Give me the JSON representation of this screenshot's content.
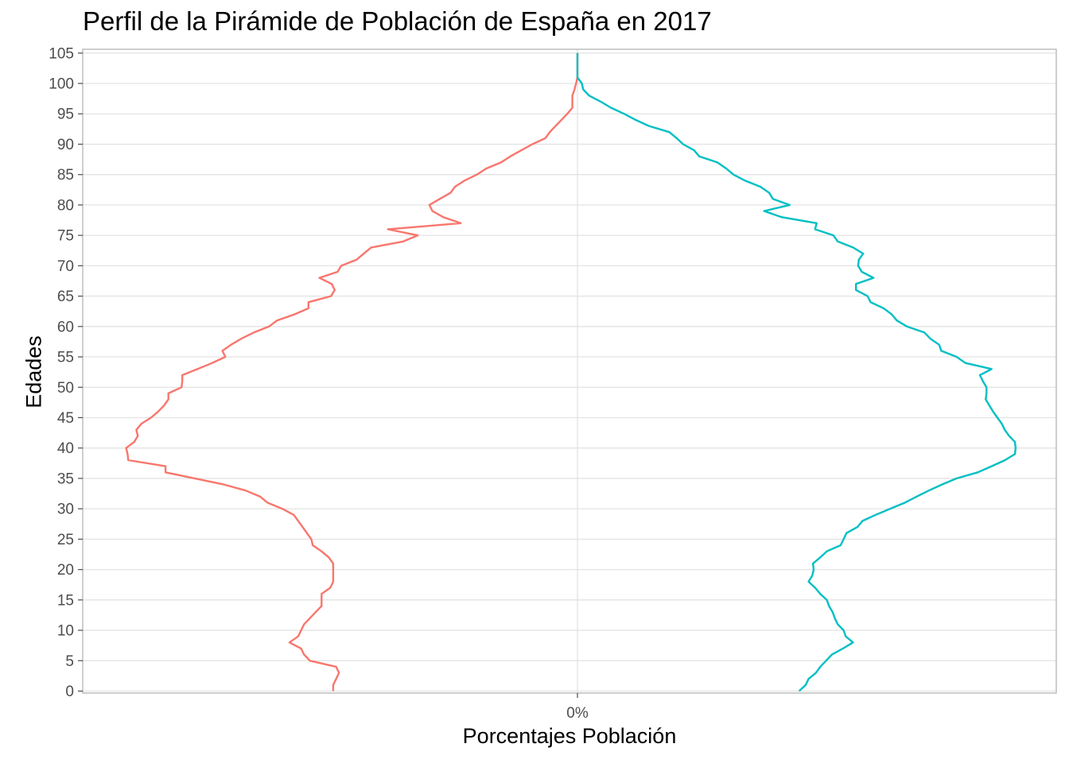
{
  "chart_data": {
    "type": "line",
    "title": "Perfil de la Pirámide de Población de España en 2017",
    "xlabel": "Porcentajes Población",
    "ylabel": "Edades",
    "x_tick_labels": [
      "0%"
    ],
    "x_ticks": [
      0
    ],
    "y_ticks": [
      0,
      5,
      10,
      15,
      20,
      25,
      30,
      35,
      40,
      45,
      50,
      55,
      60,
      65,
      70,
      75,
      80,
      85,
      90,
      95,
      100,
      105
    ],
    "xlim": [
      -0.95,
      0.95
    ],
    "ylim": [
      0,
      105
    ],
    "grid": true,
    "legend": "none",
    "series": [
      {
        "color": "#F8766D",
        "points": [
          [
            0,
            -0.4653
          ],
          [
            1,
            -0.4653
          ],
          [
            2,
            -0.4597
          ],
          [
            3,
            -0.4542
          ],
          [
            4,
            -0.4597
          ],
          [
            5,
            -0.5097
          ],
          [
            6,
            -0.5208
          ],
          [
            7,
            -0.5264
          ],
          [
            8,
            -0.5486
          ],
          [
            9,
            -0.5319
          ],
          [
            10,
            -0.5264
          ],
          [
            11,
            -0.5208
          ],
          [
            12,
            -0.5097
          ],
          [
            13,
            -0.4986
          ],
          [
            14,
            -0.4875
          ],
          [
            15,
            -0.4875
          ],
          [
            16,
            -0.4875
          ],
          [
            17,
            -0.4708
          ],
          [
            18,
            -0.4653
          ],
          [
            19,
            -0.4653
          ],
          [
            20,
            -0.4653
          ],
          [
            21,
            -0.4653
          ],
          [
            22,
            -0.4736
          ],
          [
            23,
            -0.4875
          ],
          [
            24,
            -0.5042
          ],
          [
            25,
            -0.5069
          ],
          [
            26,
            -0.5153
          ],
          [
            27,
            -0.5236
          ],
          [
            28,
            -0.5319
          ],
          [
            29,
            -0.5403
          ],
          [
            30,
            -0.5625
          ],
          [
            31,
            -0.5903
          ],
          [
            32,
            -0.6042
          ],
          [
            33,
            -0.6319
          ],
          [
            34,
            -0.6736
          ],
          [
            35,
            -0.7292
          ],
          [
            36,
            -0.7847
          ],
          [
            37,
            -0.7847
          ],
          [
            38,
            -0.8556
          ],
          [
            39,
            -0.8569
          ],
          [
            40,
            -0.8597
          ],
          [
            41,
            -0.8444
          ],
          [
            42,
            -0.8375
          ],
          [
            43,
            -0.8403
          ],
          [
            44,
            -0.8306
          ],
          [
            45,
            -0.8125
          ],
          [
            46,
            -0.7986
          ],
          [
            47,
            -0.7875
          ],
          [
            48,
            -0.7792
          ],
          [
            49,
            -0.7792
          ],
          [
            50,
            -0.7542
          ],
          [
            51,
            -0.7528
          ],
          [
            52,
            -0.7528
          ],
          [
            53,
            -0.7236
          ],
          [
            54,
            -0.6958
          ],
          [
            55,
            -0.6708
          ],
          [
            56,
            -0.6764
          ],
          [
            57,
            -0.6597
          ],
          [
            58,
            -0.6403
          ],
          [
            59,
            -0.6167
          ],
          [
            60,
            -0.5875
          ],
          [
            61,
            -0.5722
          ],
          [
            62,
            -0.5389
          ],
          [
            63,
            -0.5125
          ],
          [
            64,
            -0.5125
          ],
          [
            65,
            -0.4694
          ],
          [
            66,
            -0.4625
          ],
          [
            67,
            -0.4681
          ],
          [
            68,
            -0.4917
          ],
          [
            69,
            -0.4569
          ],
          [
            70,
            -0.45
          ],
          [
            71,
            -0.4208
          ],
          [
            72,
            -0.4069
          ],
          [
            73,
            -0.3931
          ],
          [
            74,
            -0.3319
          ],
          [
            75,
            -0.3042
          ],
          [
            76,
            -0.3611
          ],
          [
            77,
            -0.2222
          ],
          [
            78,
            -0.2556
          ],
          [
            79,
            -0.2764
          ],
          [
            80,
            -0.2819
          ],
          [
            81,
            -0.2625
          ],
          [
            82,
            -0.2417
          ],
          [
            83,
            -0.2333
          ],
          [
            84,
            -0.2153
          ],
          [
            85,
            -0.1917
          ],
          [
            86,
            -0.1736
          ],
          [
            87,
            -0.1458
          ],
          [
            88,
            -0.1278
          ],
          [
            89,
            -0.1069
          ],
          [
            90,
            -0.0861
          ],
          [
            91,
            -0.0611
          ],
          [
            92,
            -0.0528
          ],
          [
            93,
            -0.0417
          ],
          [
            94,
            -0.0306
          ],
          [
            95,
            -0.0194
          ],
          [
            96,
            -0.0097
          ],
          [
            97,
            -0.0097
          ],
          [
            98,
            -0.0097
          ],
          [
            99,
            -0.0056
          ],
          [
            100,
            -0.0028
          ],
          [
            101,
            0.0
          ],
          [
            102,
            0.0
          ],
          [
            103,
            0.0
          ],
          [
            104,
            0.0
          ],
          [
            105,
            0.0
          ]
        ]
      },
      {
        "color": "#00BFC4",
        "points": [
          [
            0,
            0.4222
          ],
          [
            1,
            0.4347
          ],
          [
            2,
            0.4403
          ],
          [
            3,
            0.4542
          ],
          [
            4,
            0.4625
          ],
          [
            5,
            0.4736
          ],
          [
            6,
            0.4847
          ],
          [
            7,
            0.5056
          ],
          [
            8,
            0.525
          ],
          [
            9,
            0.5111
          ],
          [
            10,
            0.5069
          ],
          [
            11,
            0.4958
          ],
          [
            12,
            0.4903
          ],
          [
            13,
            0.4861
          ],
          [
            14,
            0.4792
          ],
          [
            15,
            0.475
          ],
          [
            16,
            0.4625
          ],
          [
            17,
            0.4528
          ],
          [
            18,
            0.4403
          ],
          [
            19,
            0.4472
          ],
          [
            20,
            0.45
          ],
          [
            21,
            0.4486
          ],
          [
            22,
            0.4625
          ],
          [
            23,
            0.475
          ],
          [
            24,
            0.5014
          ],
          [
            25,
            0.5069
          ],
          [
            26,
            0.5125
          ],
          [
            27,
            0.5333
          ],
          [
            28,
            0.5431
          ],
          [
            29,
            0.5681
          ],
          [
            30,
            0.5958
          ],
          [
            31,
            0.6236
          ],
          [
            32,
            0.6458
          ],
          [
            33,
            0.6694
          ],
          [
            34,
            0.6944
          ],
          [
            35,
            0.7222
          ],
          [
            36,
            0.7625
          ],
          [
            37,
            0.7889
          ],
          [
            38,
            0.8144
          ],
          [
            39,
            0.8333
          ],
          [
            40,
            0.8347
          ],
          [
            41,
            0.8333
          ],
          [
            42,
            0.8222
          ],
          [
            43,
            0.8139
          ],
          [
            44,
            0.8083
          ],
          [
            45,
            0.8
          ],
          [
            46,
            0.7917
          ],
          [
            47,
            0.7847
          ],
          [
            48,
            0.7778
          ],
          [
            49,
            0.7792
          ],
          [
            50,
            0.7792
          ],
          [
            51,
            0.7722
          ],
          [
            52,
            0.7667
          ],
          [
            53,
            0.7889
          ],
          [
            54,
            0.7389
          ],
          [
            55,
            0.7222
          ],
          [
            56,
            0.6931
          ],
          [
            57,
            0.6889
          ],
          [
            58,
            0.6722
          ],
          [
            59,
            0.6611
          ],
          [
            60,
            0.6278
          ],
          [
            61,
            0.6083
          ],
          [
            62,
            0.5986
          ],
          [
            63,
            0.5833
          ],
          [
            64,
            0.5583
          ],
          [
            65,
            0.5528
          ],
          [
            66,
            0.5306
          ],
          [
            67,
            0.5306
          ],
          [
            68,
            0.5639
          ],
          [
            69,
            0.5417
          ],
          [
            70,
            0.5347
          ],
          [
            71,
            0.5361
          ],
          [
            72,
            0.5444
          ],
          [
            73,
            0.525
          ],
          [
            74,
            0.4958
          ],
          [
            75,
            0.4875
          ],
          [
            76,
            0.4528
          ],
          [
            77,
            0.4556
          ],
          [
            78,
            0.3889
          ],
          [
            79,
            0.3556
          ],
          [
            80,
            0.4042
          ],
          [
            81,
            0.3722
          ],
          [
            82,
            0.3653
          ],
          [
            83,
            0.3486
          ],
          [
            84,
            0.3194
          ],
          [
            85,
            0.2972
          ],
          [
            86,
            0.2833
          ],
          [
            87,
            0.2667
          ],
          [
            88,
            0.2319
          ],
          [
            89,
            0.2222
          ],
          [
            90,
            0.2014
          ],
          [
            91,
            0.1889
          ],
          [
            92,
            0.175
          ],
          [
            93,
            0.1361
          ],
          [
            94,
            0.1111
          ],
          [
            95,
            0.0889
          ],
          [
            96,
            0.0639
          ],
          [
            97,
            0.0444
          ],
          [
            98,
            0.0222
          ],
          [
            99,
            0.0111
          ],
          [
            100,
            0.0083
          ],
          [
            101,
            0.0
          ],
          [
            102,
            0.0
          ],
          [
            103,
            0.0
          ],
          [
            104,
            0.0
          ],
          [
            105,
            0.0
          ]
        ]
      }
    ]
  }
}
